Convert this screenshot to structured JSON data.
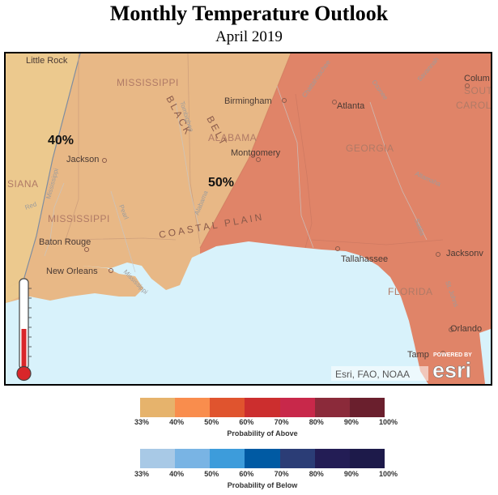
{
  "header": {
    "title": "Monthly Temperature Outlook",
    "subtitle": "April 2019"
  },
  "map": {
    "probability_labels": {
      "west": "40%",
      "east": "50%"
    },
    "states": {
      "mississippi_north": "MISSISSIPPI",
      "mississippi_south": "MISSISSIPPI",
      "alabama": "ALABAMA",
      "georgia": "GEORGIA",
      "florida": "FLORIDA",
      "louisiana": "SIANA",
      "carolina": "SOUT\nCAROL"
    },
    "cities": {
      "little_rock": "Little Rock",
      "jackson": "Jackson",
      "birmingham": "Birmingham",
      "atlanta": "Atlanta",
      "montgomery": "Montgomery",
      "baton_rouge": "Baton Rouge",
      "new_orleans": "New Orleans",
      "tallahassee": "Tallahassee",
      "jacksonville": "Jacksonv",
      "orlando": "Orlando",
      "tampa": "Tamp",
      "columbia": "Colum"
    },
    "physical": {
      "black_belt": "BLACK BELT",
      "coastal_plain": "COASTAL PLAIN",
      "rivers": [
        "Tombigbee",
        "Alabama",
        "Chattahoochee",
        "Oconee",
        "Savannah",
        "Altamaha",
        "Satilla",
        "Pearl",
        "Red",
        "Mississippi",
        "St. Johns"
      ]
    },
    "attribution": "Esri, FAO, NOAA",
    "powered_by": "POWERED BY",
    "brand": "esri",
    "colors": {
      "zone_40": "#e8b886",
      "zone_50": "#e08468",
      "zone_33": "#ecc98e",
      "water": "#d8f2fb",
      "thermometer_red": "#d9262a"
    }
  },
  "legend": {
    "above": {
      "caption": "Probability of Above",
      "colors": [
        "#e6b36c",
        "#f98d4d",
        "#e0542e",
        "#cc2e2e",
        "#c8284a",
        "#8b2a3a",
        "#6a1f2d"
      ],
      "ticks": [
        "33%",
        "40%",
        "50%",
        "60%",
        "70%",
        "80%",
        "90%",
        "100%"
      ]
    },
    "below": {
      "caption": "Probability of Below",
      "colors": [
        "#a8c9e6",
        "#79b4e4",
        "#3d9cdb",
        "#005aa3",
        "#2b3d76",
        "#231d55",
        "#1d1a4a"
      ],
      "ticks": [
        "33%",
        "40%",
        "50%",
        "60%",
        "70%",
        "80%",
        "90%",
        "100%"
      ]
    }
  }
}
